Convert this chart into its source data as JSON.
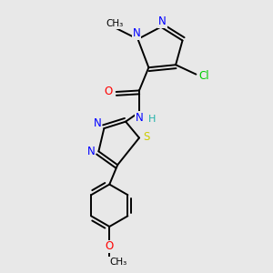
{
  "background_color": "#e8e8e8",
  "bond_color": "#000000",
  "atom_colors": {
    "N": "#0000ff",
    "O": "#ff0000",
    "S": "#cccc00",
    "Cl": "#00cc00",
    "C": "#000000",
    "H": "#20b2aa"
  },
  "font_size": 8.5,
  "lw": 1.4
}
